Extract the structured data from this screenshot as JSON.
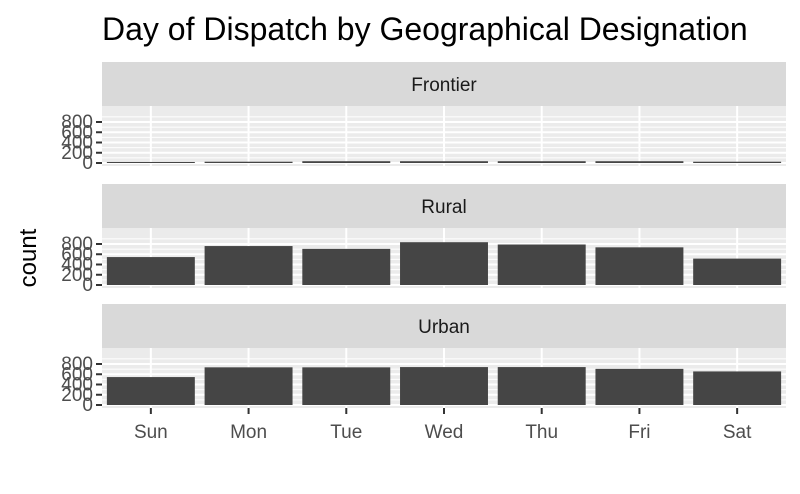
{
  "chart_data": {
    "type": "bar",
    "title": "Day of Dispatch by Geographical Designation",
    "xlabel": "",
    "ylabel": "count",
    "categories": [
      "Sun",
      "Mon",
      "Tue",
      "Wed",
      "Thu",
      "Fri",
      "Sat"
    ],
    "ylim": [
      0,
      800
    ],
    "yticks": [
      0,
      200,
      400,
      600,
      800
    ],
    "grid": true,
    "facets": [
      {
        "name": "Frontier",
        "values": [
          20,
          25,
          35,
          35,
          35,
          35,
          25
        ]
      },
      {
        "name": "Rural",
        "values": [
          545,
          760,
          705,
          835,
          790,
          735,
          515
        ]
      },
      {
        "name": "Urban",
        "values": [
          545,
          735,
          735,
          740,
          740,
          705,
          655
        ]
      }
    ],
    "colors": {
      "bar": "#454545",
      "panel": "#ebebeb",
      "strip": "#d9d9d9",
      "grid": "#ffffff"
    }
  }
}
